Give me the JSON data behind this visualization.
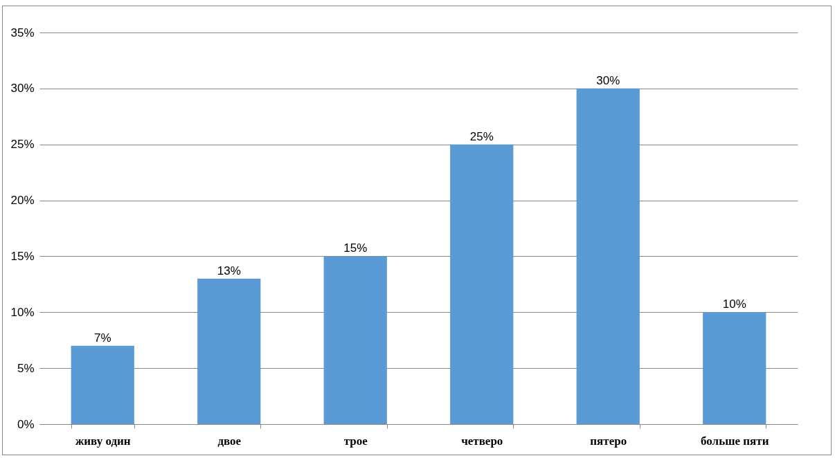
{
  "chart_data": {
    "type": "bar",
    "categories": [
      "живу один",
      "двое",
      "трое",
      "четверо",
      "пятеро",
      "больше пяти"
    ],
    "values": [
      7,
      13,
      15,
      25,
      30,
      10
    ],
    "value_labels": [
      "7%",
      "13%",
      "15%",
      "25%",
      "30%",
      "10%"
    ],
    "color": "#5b9bd5",
    "ylim": [
      0,
      35
    ],
    "yticks": [
      {
        "value": 0,
        "label": "0%"
      },
      {
        "value": 5,
        "label": "5%"
      },
      {
        "value": 10,
        "label": "10%"
      },
      {
        "value": 15,
        "label": "15%"
      },
      {
        "value": 20,
        "label": "20%"
      },
      {
        "value": 25,
        "label": "25%"
      },
      {
        "value": 30,
        "label": "30%"
      },
      {
        "value": 35,
        "label": "35%"
      }
    ],
    "grid": "y"
  }
}
